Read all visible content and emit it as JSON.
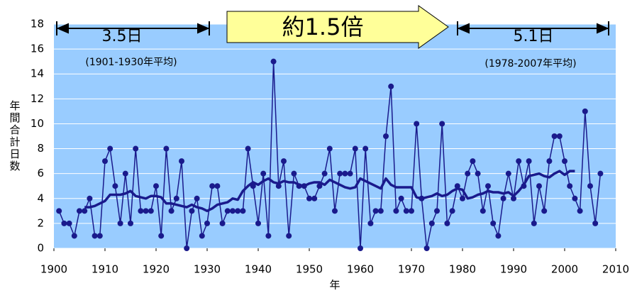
{
  "chart_data": {
    "type": "line",
    "y_label": "年間合計日数",
    "x_label": "年",
    "annotations": [
      "3.5日",
      "(1901-1930年平均)",
      "約1.5倍",
      "5.1日",
      "(1978-2007年平均)"
    ],
    "xlim": [
      1900,
      2010
    ],
    "xticks": [
      1900,
      1910,
      1920,
      1930,
      1940,
      1950,
      1960,
      1970,
      1980,
      1990,
      2000,
      2010
    ],
    "ylim": [
      0,
      18
    ],
    "yticks": [
      0,
      2,
      4,
      6,
      8,
      10,
      12,
      14,
      16,
      18
    ],
    "grid": true,
    "background": "#99ccff",
    "series": [
      {
        "color": "#1a1a8c",
        "markers": true,
        "width": 1.5,
        "x": [
          1901,
          1902,
          1903,
          1904,
          1905,
          1906,
          1907,
          1908,
          1909,
          1910,
          1911,
          1912,
          1913,
          1914,
          1915,
          1916,
          1917,
          1918,
          1919,
          1920,
          1921,
          1922,
          1923,
          1924,
          1925,
          1926,
          1927,
          1928,
          1929,
          1930,
          1931,
          1932,
          1933,
          1934,
          1935,
          1936,
          1937,
          1938,
          1939,
          1940,
          1941,
          1942,
          1943,
          1944,
          1945,
          1946,
          1947,
          1948,
          1949,
          1950,
          1951,
          1952,
          1953,
          1954,
          1955,
          1956,
          1957,
          1958,
          1959,
          1960,
          1961,
          1962,
          1963,
          1964,
          1965,
          1966,
          1967,
          1968,
          1969,
          1970,
          1971,
          1972,
          1973,
          1974,
          1975,
          1976,
          1977,
          1978,
          1979,
          1980,
          1981,
          1982,
          1983,
          1984,
          1985,
          1986,
          1987,
          1988,
          1989,
          1990,
          1991,
          1992,
          1993,
          1994,
          1995,
          1996,
          1997,
          1998,
          1999,
          2000,
          2001,
          2002,
          2003,
          2004,
          2005,
          2006,
          2007
        ],
        "values": [
          3,
          2,
          2,
          1,
          3,
          3,
          4,
          1,
          1,
          7,
          8,
          5,
          2,
          6,
          2,
          8,
          3,
          3,
          3,
          5,
          1,
          8,
          3,
          4,
          7,
          0,
          3,
          4,
          1,
          2,
          5,
          5,
          2,
          3,
          3,
          3,
          3,
          8,
          5,
          2,
          6,
          1,
          15,
          5,
          7,
          1,
          6,
          5,
          5,
          4,
          4,
          5,
          6,
          8,
          3,
          6,
          6,
          6,
          8,
          0,
          8,
          2,
          3,
          3,
          9,
          13,
          3,
          4,
          3,
          3,
          10,
          4,
          0,
          2,
          3,
          10,
          2,
          3,
          5,
          4,
          6,
          7,
          6,
          3,
          5,
          2,
          1,
          4,
          6,
          4,
          7,
          5,
          7,
          2,
          5,
          3,
          7,
          9,
          9,
          7,
          5,
          4,
          3,
          11,
          5,
          2,
          6
        ]
      },
      {
        "color": "#1a1a8c",
        "markers": false,
        "width": 3.5,
        "x": [
          1906,
          1907,
          1908,
          1909,
          1910,
          1911,
          1912,
          1913,
          1914,
          1915,
          1916,
          1917,
          1918,
          1919,
          1920,
          1921,
          1922,
          1923,
          1924,
          1925,
          1926,
          1927,
          1928,
          1929,
          1930,
          1931,
          1932,
          1933,
          1934,
          1935,
          1936,
          1937,
          1938,
          1939,
          1940,
          1941,
          1942,
          1943,
          1944,
          1945,
          1946,
          1947,
          1948,
          1949,
          1950,
          1951,
          1952,
          1953,
          1954,
          1955,
          1956,
          1957,
          1958,
          1959,
          1960,
          1961,
          1962,
          1963,
          1964,
          1965,
          1966,
          1967,
          1968,
          1969,
          1970,
          1971,
          1972,
          1973,
          1974,
          1975,
          1976,
          1977,
          1978,
          1979,
          1980,
          1981,
          1982,
          1983,
          1984,
          1985,
          1986,
          1987,
          1988,
          1989,
          1990,
          1991,
          1992,
          1993,
          1994,
          1995,
          1996,
          1997,
          1998,
          1999,
          2000,
          2001,
          2002
        ],
        "values": [
          3.3,
          3.3,
          3.4,
          3.6,
          3.8,
          4.3,
          4.3,
          4.3,
          4.4,
          4.6,
          4.2,
          4.1,
          4.0,
          4.2,
          4.2,
          4.1,
          3.6,
          3.6,
          3.5,
          3.4,
          3.3,
          3.5,
          3.3,
          3.2,
          3.0,
          3.2,
          3.5,
          3.6,
          3.7,
          4.0,
          3.9,
          4.6,
          5.0,
          5.3,
          5.1,
          5.4,
          5.6,
          5.3,
          5.2,
          5.4,
          5.3,
          5.3,
          5.1,
          5.0,
          5.2,
          5.3,
          5.3,
          5.1,
          5.5,
          5.3,
          5.1,
          4.9,
          4.8,
          4.9,
          5.6,
          5.4,
          5.2,
          5.0,
          4.8,
          5.6,
          5.1,
          4.9,
          4.9,
          4.9,
          4.9,
          4.1,
          4.0,
          4.1,
          4.2,
          4.4,
          4.2,
          4.3,
          4.6,
          4.8,
          4.7,
          4.0,
          4.1,
          4.3,
          4.4,
          4.6,
          4.5,
          4.5,
          4.4,
          4.5,
          4.2,
          4.6,
          5.1,
          5.8,
          5.9,
          6.0,
          5.8,
          5.7,
          6.0,
          6.2,
          5.9,
          6.2,
          6.2
        ]
      }
    ]
  }
}
